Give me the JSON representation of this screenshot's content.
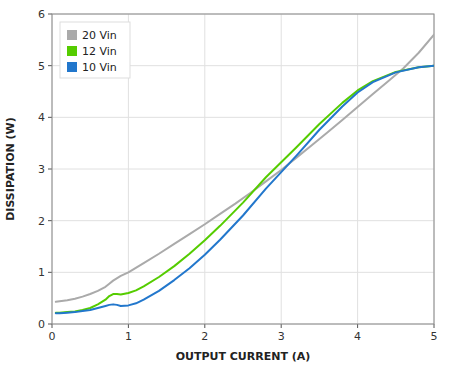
{
  "chart_data": {
    "type": "line",
    "xlabel": "OUTPUT CURRENT (A)",
    "ylabel": "DISSIPATION (W)",
    "xlim": [
      0,
      5
    ],
    "ylim": [
      0,
      6
    ],
    "xticks": [
      0,
      1,
      2,
      3,
      4,
      5
    ],
    "yticks": [
      0,
      1,
      2,
      3,
      4,
      5,
      6
    ],
    "grid": true,
    "legend": "upper left",
    "series": [
      {
        "name": "20 Vin",
        "color": "#aaaaaa",
        "x": [
          0.05,
          0.1,
          0.2,
          0.3,
          0.4,
          0.5,
          0.6,
          0.7,
          0.75,
          0.8,
          0.9,
          1.0,
          1.2,
          1.4,
          1.6,
          1.8,
          2.0,
          2.2,
          2.4,
          2.6,
          2.8,
          3.0,
          3.2,
          3.4,
          3.6,
          3.8,
          4.0,
          4.2,
          4.4,
          4.6,
          4.8,
          5.0
        ],
        "values": [
          0.43,
          0.44,
          0.46,
          0.49,
          0.53,
          0.58,
          0.64,
          0.72,
          0.78,
          0.84,
          0.93,
          1.0,
          1.18,
          1.36,
          1.55,
          1.74,
          1.93,
          2.13,
          2.33,
          2.54,
          2.76,
          2.98,
          3.22,
          3.46,
          3.7,
          3.95,
          4.2,
          4.45,
          4.7,
          4.95,
          5.25,
          5.6
        ]
      },
      {
        "name": "12 Vin",
        "color": "#55cc00",
        "x": [
          0.05,
          0.1,
          0.2,
          0.3,
          0.4,
          0.5,
          0.6,
          0.7,
          0.75,
          0.8,
          0.85,
          0.9,
          1.0,
          1.1,
          1.2,
          1.4,
          1.6,
          1.8,
          2.0,
          2.2,
          2.5,
          2.8,
          3.0,
          3.2,
          3.5,
          3.8,
          4.0,
          4.2,
          4.5,
          4.8,
          5.0
        ],
        "values": [
          0.22,
          0.22,
          0.23,
          0.24,
          0.27,
          0.31,
          0.38,
          0.47,
          0.54,
          0.58,
          0.58,
          0.57,
          0.6,
          0.65,
          0.73,
          0.91,
          1.12,
          1.36,
          1.62,
          1.9,
          2.35,
          2.84,
          3.13,
          3.42,
          3.87,
          4.28,
          4.52,
          4.7,
          4.88,
          4.97,
          5.0
        ]
      },
      {
        "name": "10 Vin",
        "color": "#2277cc",
        "x": [
          0.05,
          0.1,
          0.2,
          0.3,
          0.4,
          0.5,
          0.6,
          0.7,
          0.75,
          0.8,
          0.85,
          0.9,
          1.0,
          1.1,
          1.2,
          1.4,
          1.6,
          1.8,
          2.0,
          2.2,
          2.5,
          2.8,
          3.0,
          3.2,
          3.5,
          3.8,
          4.0,
          4.2,
          4.5,
          4.8,
          5.0
        ],
        "values": [
          0.21,
          0.21,
          0.22,
          0.23,
          0.25,
          0.27,
          0.31,
          0.35,
          0.37,
          0.38,
          0.37,
          0.35,
          0.36,
          0.4,
          0.47,
          0.64,
          0.85,
          1.08,
          1.34,
          1.63,
          2.1,
          2.62,
          2.94,
          3.26,
          3.76,
          4.21,
          4.48,
          4.68,
          4.87,
          4.97,
          5.0
        ]
      }
    ]
  }
}
